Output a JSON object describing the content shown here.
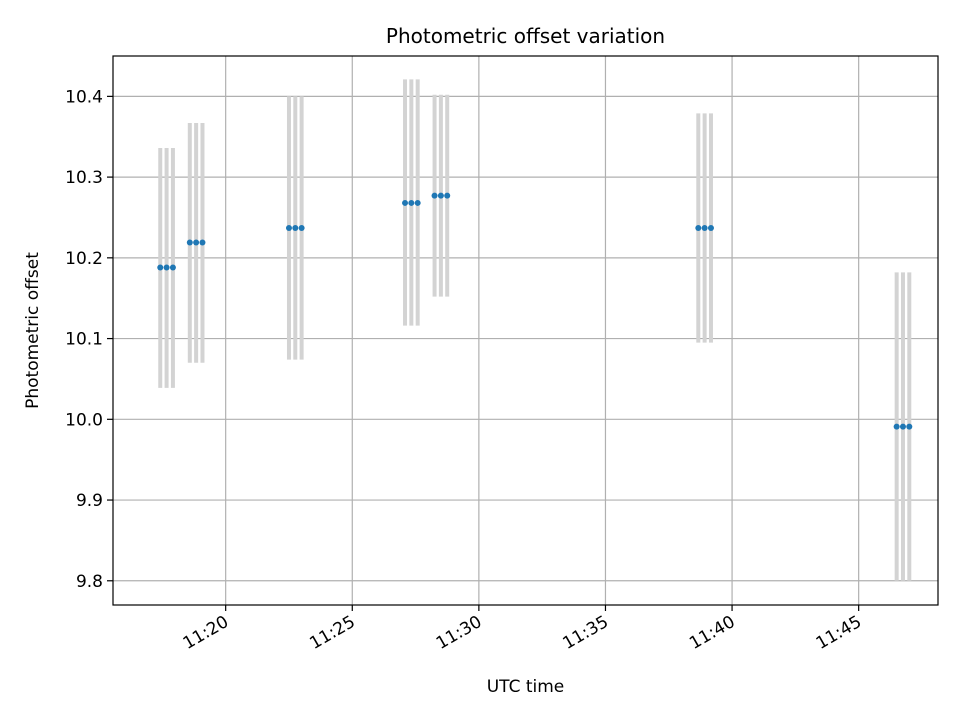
{
  "chart_data": {
    "type": "scatter",
    "title": "Photometric offset variation",
    "xlabel": "UTC time",
    "ylabel": "Photometric offset",
    "xlim": [
      "11:15:33",
      "11:48:08"
    ],
    "ylim": [
      9.77,
      10.45
    ],
    "x_ticks": [
      "11:20",
      "11:25",
      "11:30",
      "11:35",
      "11:40",
      "11:45"
    ],
    "y_ticks": [
      "9.8",
      "9.9",
      "10.0",
      "10.1",
      "10.2",
      "10.3",
      "10.4"
    ],
    "grid": true,
    "colors": {
      "points": "#1f77b4",
      "errorbars": "#d3d3d3",
      "grid": "#b0b0b0"
    },
    "groups": [
      {
        "times": [
          "11:17:25",
          "11:17:40",
          "11:17:55"
        ],
        "value": 10.188,
        "yerr_low": 10.039,
        "yerr_high": 10.336
      },
      {
        "times": [
          "11:18:35",
          "11:18:50",
          "11:19:05"
        ],
        "value": 10.219,
        "yerr_low": 10.07,
        "yerr_high": 10.367
      },
      {
        "times": [
          "11:22:30",
          "11:22:45",
          "11:23:00"
        ],
        "value": 10.237,
        "yerr_low": 10.074,
        "yerr_high": 10.4
      },
      {
        "times": [
          "11:27:05",
          "11:27:20",
          "11:27:35"
        ],
        "value": 10.268,
        "yerr_low": 10.116,
        "yerr_high": 10.421
      },
      {
        "times": [
          "11:28:15",
          "11:28:30",
          "11:28:45"
        ],
        "value": 10.277,
        "yerr_low": 10.152,
        "yerr_high": 10.402
      },
      {
        "times": [
          "11:38:40",
          "11:38:55",
          "11:39:10"
        ],
        "value": 10.237,
        "yerr_low": 10.095,
        "yerr_high": 10.379
      },
      {
        "times": [
          "11:46:30",
          "11:46:45",
          "11:47:00"
        ],
        "value": 9.991,
        "yerr_low": 9.8,
        "yerr_high": 10.182
      }
    ]
  }
}
